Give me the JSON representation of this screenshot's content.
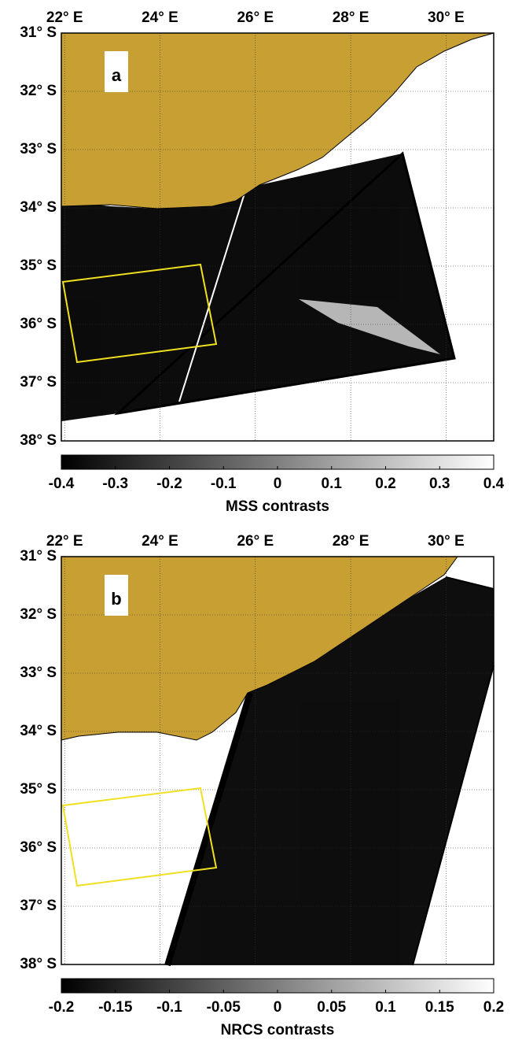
{
  "panels": [
    {
      "label": "a",
      "xlim": [
        21.93,
        31.0
      ],
      "ylim": [
        -38,
        -31
      ],
      "xticks": [
        {
          "value": 22,
          "label": "22° E"
        },
        {
          "value": 24,
          "label": "24° E"
        },
        {
          "value": 26,
          "label": "26° E"
        },
        {
          "value": 28,
          "label": "28° E"
        },
        {
          "value": 30,
          "label": "30° E"
        }
      ],
      "yticks": [
        {
          "value": -31,
          "label": "31° S"
        },
        {
          "value": -32,
          "label": "32° S"
        },
        {
          "value": -33,
          "label": "33° S"
        },
        {
          "value": -34,
          "label": "34° S"
        },
        {
          "value": -35,
          "label": "35° S"
        },
        {
          "value": -36,
          "label": "36° S"
        },
        {
          "value": -37,
          "label": "37° S"
        },
        {
          "value": -38,
          "label": "38° S"
        }
      ],
      "colorbar": {
        "label": "MSS contrasts",
        "lim": [
          -0.4,
          0.4
        ],
        "ticks": [
          -0.4,
          -0.3,
          -0.2,
          -0.1,
          0,
          0.1,
          0.2,
          0.3,
          0.4
        ]
      }
    },
    {
      "label": "b",
      "xlim": [
        21.93,
        31.0
      ],
      "ylim": [
        -38,
        -31
      ],
      "xticks": [
        {
          "value": 22,
          "label": "22° E"
        },
        {
          "value": 24,
          "label": "24° E"
        },
        {
          "value": 26,
          "label": "26° E"
        },
        {
          "value": 28,
          "label": "28° E"
        },
        {
          "value": 30,
          "label": "30° E"
        }
      ],
      "yticks": [
        {
          "value": -31,
          "label": "31° S"
        },
        {
          "value": -32,
          "label": "32° S"
        },
        {
          "value": -33,
          "label": "33° S"
        },
        {
          "value": -34,
          "label": "34° S"
        },
        {
          "value": -35,
          "label": "35° S"
        },
        {
          "value": -36,
          "label": "36° S"
        },
        {
          "value": -37,
          "label": "37° S"
        },
        {
          "value": -38,
          "label": "38° S"
        }
      ],
      "colorbar": {
        "label": "NRCS contrasts",
        "lim": [
          -0.2,
          0.2
        ],
        "ticks": [
          -0.2,
          -0.15,
          -0.1,
          -0.05,
          0,
          0.05,
          0.1,
          0.15,
          0.2
        ]
      }
    }
  ]
}
